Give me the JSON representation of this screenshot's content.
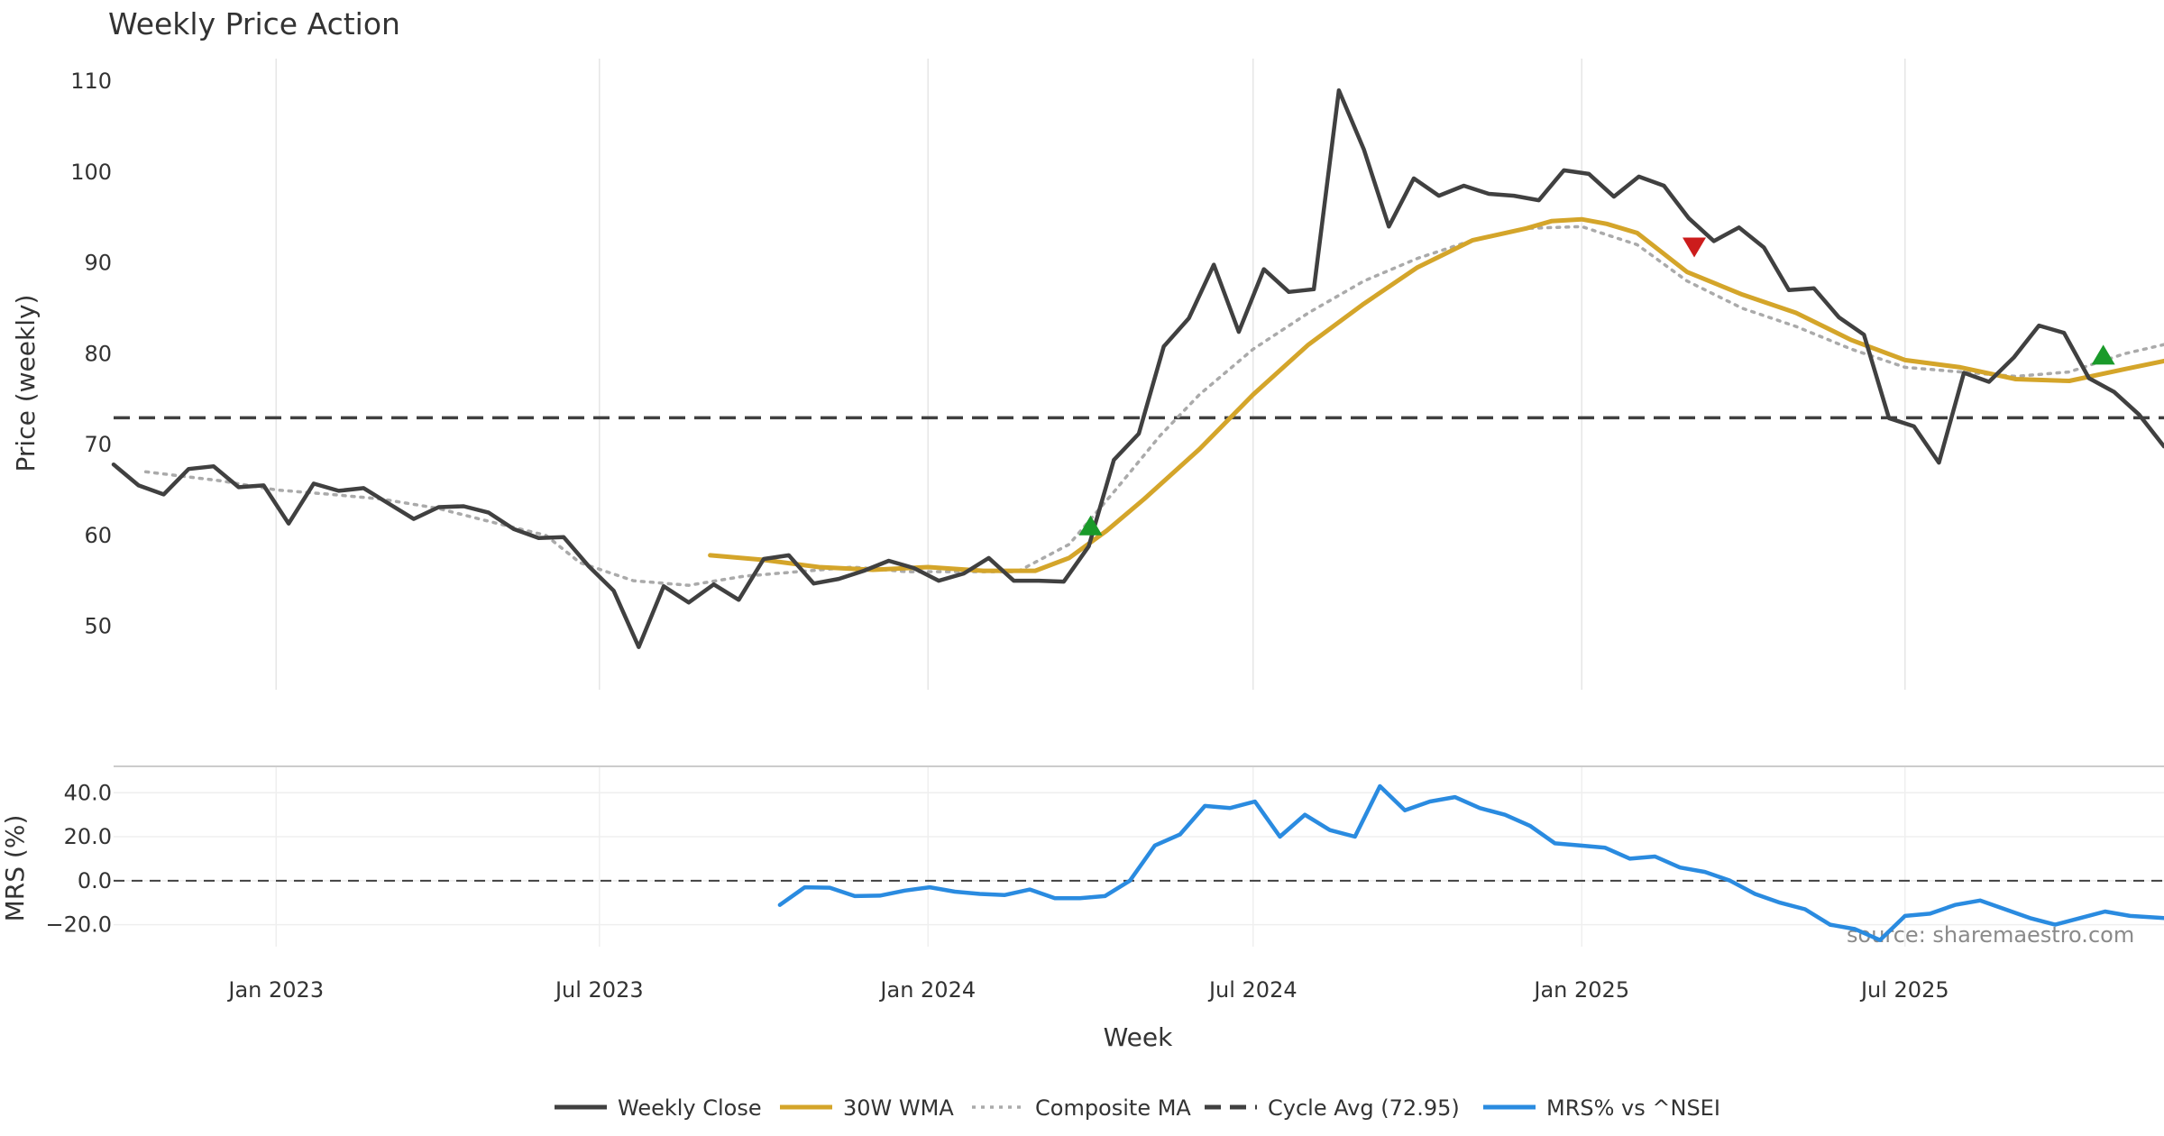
{
  "chart_data": {
    "type": "line",
    "title": "Weekly Price Action",
    "xlabel": "Week",
    "source_note": "source: sharemaestro.com",
    "x_ticks": [
      "Jan 2023",
      "Jul 2023",
      "Jan 2024",
      "Jul 2024",
      "Jan 2025",
      "Jul 2025"
    ],
    "x_tick_dates": [
      "2023-01-01",
      "2023-07-01",
      "2024-01-01",
      "2024-07-01",
      "2025-01-01",
      "2025-07-01"
    ],
    "x_range": [
      "2022-10-02",
      "2025-11-23"
    ],
    "grid": true,
    "legend_position": "bottom-center",
    "price_panel": {
      "ylabel": "Price (weekly)",
      "ylim": [
        43,
        112
      ],
      "y_ticks": [
        50,
        60,
        70,
        80,
        90,
        100,
        110
      ],
      "cycle_avg": 72.95,
      "series": [
        {
          "name": "Weekly Close",
          "color": "#404040",
          "style": "solid",
          "points": [
            [
              "2022-10-02",
              67.8
            ],
            [
              "2022-10-16",
              65.5
            ],
            [
              "2022-10-30",
              64.5
            ],
            [
              "2022-11-13",
              67.3
            ],
            [
              "2022-11-27",
              67.6
            ],
            [
              "2022-12-11",
              65.3
            ],
            [
              "2022-12-25",
              65.5
            ],
            [
              "2023-01-08",
              61.3
            ],
            [
              "2023-01-22",
              65.7
            ],
            [
              "2023-02-05",
              64.9
            ],
            [
              "2023-02-19",
              65.2
            ],
            [
              "2023-03-05",
              63.5
            ],
            [
              "2023-03-19",
              61.8
            ],
            [
              "2023-04-02",
              63.1
            ],
            [
              "2023-04-16",
              63.2
            ],
            [
              "2023-04-30",
              62.5
            ],
            [
              "2023-05-14",
              60.7
            ],
            [
              "2023-05-28",
              59.7
            ],
            [
              "2023-06-11",
              59.8
            ],
            [
              "2023-06-25",
              56.6
            ],
            [
              "2023-07-09",
              53.9
            ],
            [
              "2023-07-23",
              47.7
            ],
            [
              "2023-08-06",
              54.4
            ],
            [
              "2023-08-20",
              52.6
            ],
            [
              "2023-09-03",
              54.6
            ],
            [
              "2023-09-17",
              52.9
            ],
            [
              "2023-10-01",
              57.4
            ],
            [
              "2023-10-15",
              57.8
            ],
            [
              "2023-10-29",
              54.7
            ],
            [
              "2023-11-12",
              55.2
            ],
            [
              "2023-11-26",
              56.1
            ],
            [
              "2023-12-10",
              57.2
            ],
            [
              "2023-12-24",
              56.4
            ],
            [
              "2024-01-07",
              55.0
            ],
            [
              "2024-01-21",
              55.8
            ],
            [
              "2024-02-04",
              57.5
            ],
            [
              "2024-02-18",
              55.0
            ],
            [
              "2024-03-03",
              55.0
            ],
            [
              "2024-03-17",
              54.9
            ],
            [
              "2024-03-31",
              58.8
            ],
            [
              "2024-04-14",
              68.3
            ],
            [
              "2024-04-28",
              71.2
            ],
            [
              "2024-05-12",
              80.8
            ],
            [
              "2024-05-26",
              83.9
            ],
            [
              "2024-06-09",
              89.8
            ],
            [
              "2024-06-23",
              82.4
            ],
            [
              "2024-07-07",
              89.3
            ],
            [
              "2024-07-21",
              86.8
            ],
            [
              "2024-08-04",
              87.1
            ],
            [
              "2024-08-18",
              109.0
            ],
            [
              "2024-09-01",
              102.5
            ],
            [
              "2024-09-15",
              94.0
            ],
            [
              "2024-09-29",
              99.3
            ],
            [
              "2024-10-13",
              97.4
            ],
            [
              "2024-10-27",
              98.5
            ],
            [
              "2024-11-10",
              97.6
            ],
            [
              "2024-11-24",
              97.4
            ],
            [
              "2024-12-08",
              96.9
            ],
            [
              "2024-12-22",
              100.2
            ],
            [
              "2025-01-05",
              99.8
            ],
            [
              "2025-01-19",
              97.3
            ],
            [
              "2025-02-02",
              99.5
            ],
            [
              "2025-02-16",
              98.5
            ],
            [
              "2025-03-02",
              94.9
            ],
            [
              "2025-03-16",
              92.4
            ],
            [
              "2025-03-30",
              93.9
            ],
            [
              "2025-04-13",
              91.7
            ],
            [
              "2025-04-27",
              87.0
            ],
            [
              "2025-05-11",
              87.2
            ],
            [
              "2025-05-25",
              84.0
            ],
            [
              "2025-06-08",
              82.1
            ],
            [
              "2025-06-22",
              72.9
            ],
            [
              "2025-07-06",
              72.0
            ],
            [
              "2025-07-20",
              68.0
            ],
            [
              "2025-08-03",
              77.9
            ],
            [
              "2025-08-17",
              76.9
            ],
            [
              "2025-08-31",
              79.6
            ],
            [
              "2025-09-14",
              83.1
            ],
            [
              "2025-09-28",
              82.3
            ],
            [
              "2025-10-12",
              77.3
            ],
            [
              "2025-10-26",
              75.8
            ],
            [
              "2025-11-09",
              73.3
            ],
            [
              "2025-11-23",
              69.8
            ]
          ]
        },
        {
          "name": "30W WMA",
          "color": "#d4a52a",
          "style": "solid",
          "points": [
            [
              "2023-09-01",
              57.8
            ],
            [
              "2023-10-01",
              57.3
            ],
            [
              "2023-11-01",
              56.5
            ],
            [
              "2023-12-01",
              56.2
            ],
            [
              "2024-01-01",
              56.5
            ],
            [
              "2024-02-01",
              56.1
            ],
            [
              "2024-03-01",
              56.1
            ],
            [
              "2024-03-20",
              57.5
            ],
            [
              "2024-04-10",
              60.5
            ],
            [
              "2024-05-01",
              64.0
            ],
            [
              "2024-06-01",
              69.5
            ],
            [
              "2024-07-01",
              75.5
            ],
            [
              "2024-08-01",
              81.0
            ],
            [
              "2024-09-01",
              85.5
            ],
            [
              "2024-10-01",
              89.5
            ],
            [
              "2024-11-01",
              92.5
            ],
            [
              "2024-12-01",
              93.8
            ],
            [
              "2024-12-15",
              94.6
            ],
            [
              "2025-01-01",
              94.8
            ],
            [
              "2025-01-15",
              94.3
            ],
            [
              "2025-02-01",
              93.3
            ],
            [
              "2025-03-01",
              89.0
            ],
            [
              "2025-04-01",
              86.5
            ],
            [
              "2025-05-01",
              84.5
            ],
            [
              "2025-06-01",
              81.5
            ],
            [
              "2025-07-01",
              79.3
            ],
            [
              "2025-08-01",
              78.5
            ],
            [
              "2025-09-01",
              77.2
            ],
            [
              "2025-10-01",
              77.0
            ],
            [
              "2025-11-01",
              78.3
            ],
            [
              "2025-11-23",
              79.2
            ]
          ]
        },
        {
          "name": "Composite MA",
          "color": "#aaaaaa",
          "style": "dotted",
          "points": [
            [
              "2022-10-20",
              67.0
            ],
            [
              "2022-12-01",
              66.0
            ],
            [
              "2023-01-01",
              65.0
            ],
            [
              "2023-02-01",
              64.5
            ],
            [
              "2023-03-01",
              64.0
            ],
            [
              "2023-04-01",
              63.0
            ],
            [
              "2023-05-01",
              61.5
            ],
            [
              "2023-06-01",
              60.0
            ],
            [
              "2023-06-20",
              57.0
            ],
            [
              "2023-07-20",
              55.0
            ],
            [
              "2023-08-20",
              54.5
            ],
            [
              "2023-09-20",
              55.5
            ],
            [
              "2023-10-20",
              56.0
            ],
            [
              "2023-11-20",
              56.5
            ],
            [
              "2023-12-20",
              56.0
            ],
            [
              "2024-01-20",
              56.0
            ],
            [
              "2024-02-20",
              56.0
            ],
            [
              "2024-03-20",
              59.0
            ],
            [
              "2024-04-15",
              65.0
            ],
            [
              "2024-05-10",
              71.0
            ],
            [
              "2024-06-01",
              75.5
            ],
            [
              "2024-07-01",
              80.5
            ],
            [
              "2024-08-01",
              84.5
            ],
            [
              "2024-09-01",
              88.0
            ],
            [
              "2024-10-01",
              90.5
            ],
            [
              "2024-11-01",
              92.5
            ],
            [
              "2024-12-01",
              93.8
            ],
            [
              "2025-01-01",
              94.0
            ],
            [
              "2025-02-01",
              92.0
            ],
            [
              "2025-03-01",
              88.0
            ],
            [
              "2025-04-01",
              85.0
            ],
            [
              "2025-05-01",
              83.0
            ],
            [
              "2025-06-01",
              80.5
            ],
            [
              "2025-07-01",
              78.5
            ],
            [
              "2025-08-01",
              78.0
            ],
            [
              "2025-09-01",
              77.5
            ],
            [
              "2025-10-01",
              78.0
            ],
            [
              "2025-11-01",
              80.0
            ],
            [
              "2025-11-23",
              81.0
            ]
          ]
        }
      ],
      "buy_signals": [
        [
          "2024-04-01",
          61.0
        ],
        [
          "2025-10-20",
          79.8
        ]
      ],
      "sell_signals": [
        [
          "2025-03-05",
          91.8
        ]
      ]
    },
    "mrs_panel": {
      "ylabel": "MRS (%)",
      "ylim": [
        -30,
        52
      ],
      "y_ticks": [
        40.0,
        20.0,
        0.0,
        -20.0
      ],
      "y_tick_labels": [
        "40.0",
        "20.0",
        "0.0",
        "−20.0"
      ],
      "series": [
        {
          "name": "MRS% vs ^NSEI",
          "color": "#2a8be0",
          "style": "solid",
          "points": [
            [
              "2023-10-10",
              -11.0
            ],
            [
              "2023-10-24",
              -3.0
            ],
            [
              "2023-11-07",
              -3.2
            ],
            [
              "2023-11-21",
              -7.0
            ],
            [
              "2023-12-05",
              -6.8
            ],
            [
              "2023-12-19",
              -4.5
            ],
            [
              "2024-01-02",
              -3.0
            ],
            [
              "2024-01-16",
              -5.0
            ],
            [
              "2024-01-30",
              -6.0
            ],
            [
              "2024-02-13",
              -6.5
            ],
            [
              "2024-02-27",
              -4.0
            ],
            [
              "2024-03-12",
              -8.0
            ],
            [
              "2024-03-26",
              -8.0
            ],
            [
              "2024-04-09",
              -7.0
            ],
            [
              "2024-04-23",
              0.0
            ],
            [
              "2024-05-07",
              16.0
            ],
            [
              "2024-05-21",
              21.0
            ],
            [
              "2024-06-04",
              34.0
            ],
            [
              "2024-06-18",
              33.0
            ],
            [
              "2024-07-02",
              36.0
            ],
            [
              "2024-07-16",
              20.0
            ],
            [
              "2024-07-30",
              30.0
            ],
            [
              "2024-08-13",
              23.0
            ],
            [
              "2024-08-27",
              20.0
            ],
            [
              "2024-09-10",
              43.0
            ],
            [
              "2024-09-24",
              32.0
            ],
            [
              "2024-10-08",
              36.0
            ],
            [
              "2024-10-22",
              38.0
            ],
            [
              "2024-11-05",
              33.0
            ],
            [
              "2024-11-19",
              30.0
            ],
            [
              "2024-12-03",
              25.0
            ],
            [
              "2024-12-17",
              17.0
            ],
            [
              "2024-12-31",
              16.0
            ],
            [
              "2025-01-14",
              15.0
            ],
            [
              "2025-01-28",
              10.0
            ],
            [
              "2025-02-11",
              11.0
            ],
            [
              "2025-02-25",
              6.0
            ],
            [
              "2025-03-11",
              4.0
            ],
            [
              "2025-03-25",
              0.0
            ],
            [
              "2025-04-08",
              -6.0
            ],
            [
              "2025-04-22",
              -10.0
            ],
            [
              "2025-05-06",
              -13.0
            ],
            [
              "2025-05-20",
              -20.0
            ],
            [
              "2025-06-03",
              -22.0
            ],
            [
              "2025-06-17",
              -27.0
            ],
            [
              "2025-07-01",
              -16.0
            ],
            [
              "2025-07-15",
              -15.0
            ],
            [
              "2025-07-29",
              -11.0
            ],
            [
              "2025-08-12",
              -9.0
            ],
            [
              "2025-08-26",
              -13.0
            ],
            [
              "2025-09-09",
              -17.0
            ],
            [
              "2025-09-23",
              -20.0
            ],
            [
              "2025-10-07",
              -17.0
            ],
            [
              "2025-10-21",
              -14.0
            ],
            [
              "2025-11-04",
              -16.0
            ],
            [
              "2025-11-23",
              -17.0
            ]
          ]
        }
      ]
    },
    "legend": [
      {
        "label": "Weekly Close",
        "color": "#404040",
        "style": "solid"
      },
      {
        "label": "30W WMA",
        "color": "#d4a52a",
        "style": "solid"
      },
      {
        "label": "Composite MA",
        "color": "#aaaaaa",
        "style": "dotted"
      },
      {
        "label": "Cycle Avg (72.95)",
        "color": "#404040",
        "style": "dashed"
      },
      {
        "label": "MRS% vs ^NSEI",
        "color": "#2a8be0",
        "style": "solid"
      }
    ]
  }
}
